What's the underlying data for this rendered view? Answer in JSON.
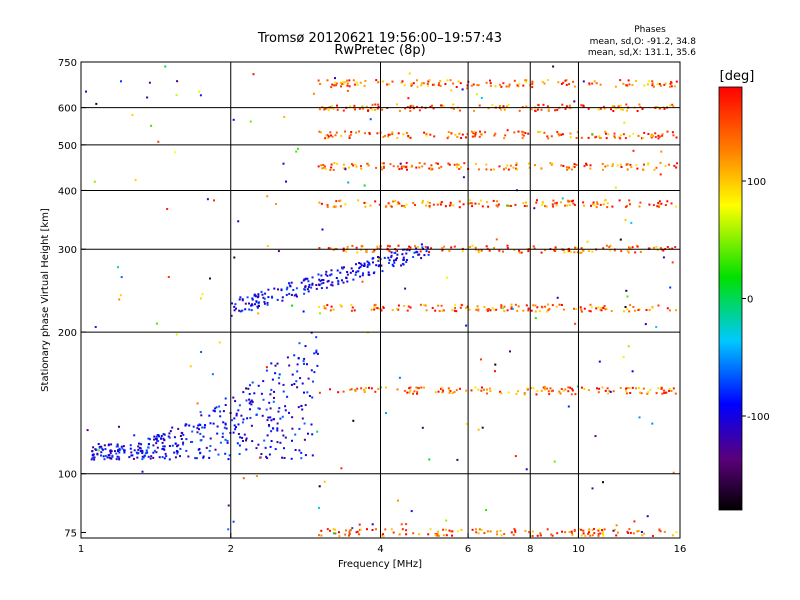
{
  "chart_data": {
    "type": "scatter",
    "title": "Tromsø 20120621 19:56:00–19:57:43",
    "subtitle": "RwPretec (8p)",
    "xlabel": "Frequency [MHz]",
    "ylabel": "Stationary phase Virtual Height [km]",
    "x_scale": "log",
    "y_scale": "log",
    "xlim": [
      1,
      16
    ],
    "ylim": [
      73,
      750
    ],
    "x_ticks": [
      1,
      2,
      4,
      6,
      8,
      10,
      16
    ],
    "x_tick_labels": [
      "1",
      "2",
      "4",
      "6",
      "8",
      "10",
      "16"
    ],
    "y_ticks": [
      75,
      100,
      200,
      300,
      400,
      500,
      600,
      750
    ],
    "y_tick_labels": [
      "75",
      "100",
      "200",
      "300",
      "400",
      "500",
      "600",
      "750"
    ],
    "grid": true,
    "colorbar": {
      "label": "[deg]",
      "range": [
        -180,
        180
      ],
      "ticks": [
        100,
        0,
        -100
      ],
      "tick_labels": [
        "100",
        "0",
        "-100"
      ]
    },
    "annotation": {
      "title": "Phases",
      "line1": "mean, sd,O: -91.2, 34.8",
      "line2": "mean, sd,X: 131.1, 35.6"
    },
    "echo_traces": [
      {
        "kind": "o_mode_low_trace",
        "x_range": [
          1.05,
          3.0
        ],
        "y_range": [
          105,
          160
        ],
        "phase_mean": -95
      },
      {
        "kind": "o_mode_f_trace",
        "x_range": [
          2.0,
          5.0
        ],
        "y_range": [
          225,
          300
        ],
        "phase_mean": -95
      },
      {
        "kind": "harmonic_band",
        "x_range": [
          3.0,
          15.8
        ],
        "y": 75,
        "phase_mean": 140
      },
      {
        "kind": "harmonic_band",
        "x_range": [
          3.0,
          15.8
        ],
        "y": 150,
        "phase_mean": 140
      },
      {
        "kind": "harmonic_band",
        "x_range": [
          3.0,
          15.8
        ],
        "y": 225,
        "phase_mean": 140
      },
      {
        "kind": "harmonic_band",
        "x_range": [
          3.0,
          15.8
        ],
        "y": 300,
        "phase_mean": 140
      },
      {
        "kind": "harmonic_band",
        "x_range": [
          3.0,
          15.8
        ],
        "y": 375,
        "phase_mean": 140
      },
      {
        "kind": "harmonic_band",
        "x_range": [
          3.0,
          15.8
        ],
        "y": 450,
        "phase_mean": 140
      },
      {
        "kind": "harmonic_band",
        "x_range": [
          3.0,
          15.8
        ],
        "y": 525,
        "phase_mean": 140
      },
      {
        "kind": "harmonic_band",
        "x_range": [
          3.0,
          15.8
        ],
        "y": 600,
        "phase_mean": 140
      },
      {
        "kind": "harmonic_band",
        "x_range": [
          3.0,
          15.8
        ],
        "y": 675,
        "phase_mean": 140
      }
    ]
  }
}
